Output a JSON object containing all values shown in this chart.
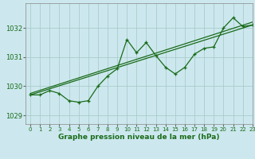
{
  "title": "Graphe pression niveau de la mer (hPa)",
  "bg_color": "#cce8ee",
  "grid_color": "#aacccc",
  "line_color": "#1a6b1a",
  "xlim": [
    -0.5,
    23
  ],
  "ylim": [
    1028.7,
    1032.85
  ],
  "yticks": [
    1029,
    1030,
    1031,
    1032
  ],
  "xticks": [
    0,
    1,
    2,
    3,
    4,
    5,
    6,
    7,
    8,
    9,
    10,
    11,
    12,
    13,
    14,
    15,
    16,
    17,
    18,
    19,
    20,
    21,
    22,
    23
  ],
  "trend1": {
    "x": [
      0,
      23
    ],
    "y": [
      1029.7,
      1032.1
    ]
  },
  "trend2": {
    "x": [
      0,
      23
    ],
    "y": [
      1029.75,
      1032.2
    ]
  },
  "data": {
    "x": [
      0,
      1,
      2,
      3,
      4,
      5,
      6,
      7,
      8,
      9,
      10,
      11,
      12,
      13,
      14,
      15,
      16,
      17,
      18,
      19,
      20,
      21,
      22,
      23
    ],
    "y": [
      1029.7,
      1029.7,
      1029.85,
      1029.75,
      1029.5,
      1029.45,
      1029.5,
      1030.0,
      1030.35,
      1030.6,
      1031.6,
      1031.15,
      1031.5,
      1031.05,
      1030.65,
      1030.42,
      1030.65,
      1031.1,
      1031.3,
      1031.35,
      1032.0,
      1032.35,
      1032.05,
      1032.1
    ]
  }
}
